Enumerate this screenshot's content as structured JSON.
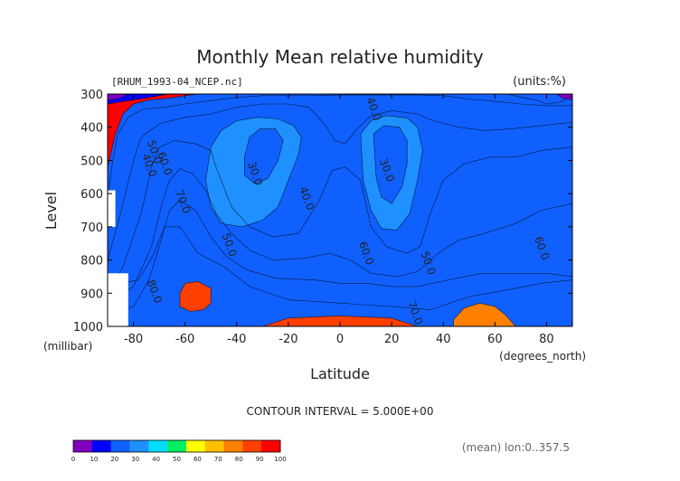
{
  "chart_data": {
    "type": "heatmap",
    "title": "Monthly Mean relative humidity",
    "subtitle_left": "[RHUM_1993-04_NCEP.nc]",
    "subtitle_right": "(units:%)",
    "xlabel": "Latitude",
    "xunits": "(degrees_north)",
    "ylabel": "Level",
    "yunits": "(millibar)",
    "xlim": [
      -90,
      90
    ],
    "ylim": [
      1000,
      300
    ],
    "x_ticks": [
      -80,
      -60,
      -40,
      -20,
      0,
      20,
      40,
      60,
      80
    ],
    "y_ticks": [
      300,
      400,
      500,
      600,
      700,
      800,
      900,
      1000
    ],
    "contour_interval_text": "CONTOUR INTERVAL = 5.000E+00",
    "footer_text": "(mean) lon:0..357.5",
    "colorbar": {
      "levels": [
        0,
        10,
        20,
        30,
        40,
        50,
        60,
        70,
        80,
        90,
        100
      ],
      "colors": [
        "#8000c0",
        "#0000ff",
        "#1060ff",
        "#1e90ff",
        "#00ddff",
        "#00ee60",
        "#ffff00",
        "#ffc000",
        "#ff8000",
        "#ff4000",
        "#ff0000"
      ]
    },
    "contour_labels": [
      {
        "text": "40.0",
        "lat": 13,
        "lev": 345
      },
      {
        "text": "30.0",
        "lat": -33,
        "lev": 540
      },
      {
        "text": "30.0",
        "lat": 18,
        "lev": 530
      },
      {
        "text": "40.0",
        "lat": -13,
        "lev": 615
      },
      {
        "text": "40.0",
        "lat": -74,
        "lev": 515
      },
      {
        "text": "50.0",
        "lat": -72,
        "lev": 475
      },
      {
        "text": "60.0",
        "lat": -68,
        "lev": 510
      },
      {
        "text": "70.0",
        "lat": -61,
        "lev": 625
      },
      {
        "text": "50.0",
        "lat": -43,
        "lev": 755
      },
      {
        "text": "60.0",
        "lat": 10,
        "lev": 780
      },
      {
        "text": "50.0",
        "lat": 34,
        "lev": 810
      },
      {
        "text": "70.0",
        "lat": 29,
        "lev": 960
      },
      {
        "text": "80.0",
        "lat": -72,
        "lev": 895
      },
      {
        "text": "60.0",
        "lat": 78,
        "lev": 765
      }
    ]
  }
}
